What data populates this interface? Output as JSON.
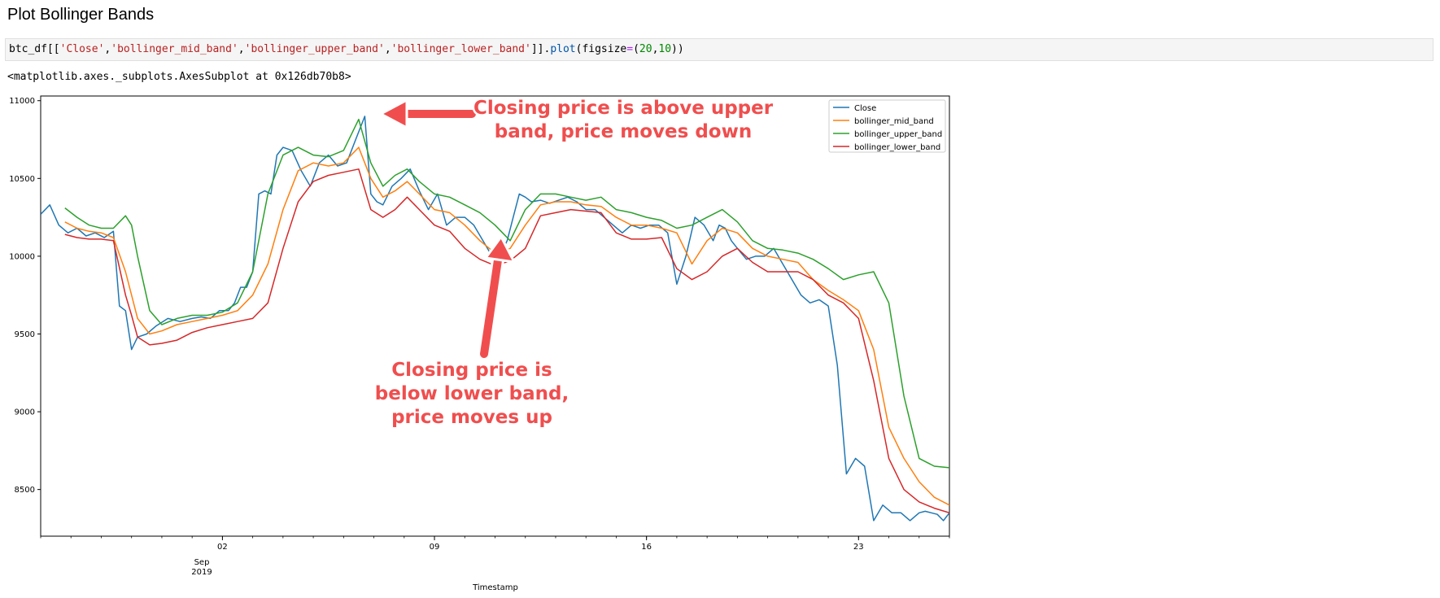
{
  "page": {
    "heading": "Plot Bollinger Bands",
    "code": {
      "prefix": "btc_df[[",
      "col_close": "'Close'",
      "comma": ",",
      "col_mid": "'bollinger_mid_band'",
      "col_upper": "'bollinger_upper_band'",
      "col_lower": "'bollinger_lower_band'",
      "mid": "]].",
      "method": "plot",
      "args_open": "(figsize",
      "equals": "=",
      "paren": "(",
      "num1": "20",
      "num2": "10",
      "close": "))"
    },
    "output_repr": "<matplotlib.axes._subplots.AxesSubplot at 0x126db70b8>"
  },
  "colors": {
    "close": "#1f77b4",
    "bollinger_mid_band": "#ff7f0e",
    "bollinger_upper_band": "#2ca02c",
    "bollinger_lower_band": "#d62728",
    "annotation": "#f04e4e"
  },
  "chart_data": {
    "type": "line",
    "xlabel": "Timestamp",
    "ylabel": "",
    "title": "",
    "xlim": [
      0,
      30
    ],
    "ylim": [
      8200,
      11030
    ],
    "x_unit": "days since 2019-08-26",
    "yticks": [
      8500,
      9000,
      9500,
      10000,
      10500,
      11000
    ],
    "xticks": [
      {
        "x": 6,
        "label": "02",
        "sublabel": "Sep",
        "sublabel2": "2019"
      },
      {
        "x": 13,
        "label": "09",
        "sublabel": "",
        "sublabel2": ""
      },
      {
        "x": 20,
        "label": "16",
        "sublabel": "",
        "sublabel2": ""
      },
      {
        "x": 27,
        "label": "23",
        "sublabel": "",
        "sublabel2": ""
      }
    ],
    "legend_position": "top-right",
    "series": [
      {
        "name": "Close",
        "color": "#1f77b4",
        "x": [
          0,
          0.3,
          0.6,
          0.9,
          1.2,
          1.5,
          1.8,
          2.1,
          2.4,
          2.6,
          2.8,
          3.0,
          3.2,
          3.5,
          3.8,
          4.2,
          4.6,
          5.0,
          5.3,
          5.6,
          5.9,
          6.2,
          6.4,
          6.6,
          6.8,
          7.0,
          7.2,
          7.4,
          7.6,
          7.8,
          8.0,
          8.3,
          8.6,
          8.9,
          9.2,
          9.5,
          9.8,
          10.1,
          10.4,
          10.7,
          10.9,
          11.1,
          11.3,
          11.6,
          11.9,
          12.2,
          12.5,
          12.8,
          13.1,
          13.4,
          13.7,
          14.0,
          14.3,
          14.6,
          14.9,
          15.2,
          15.4,
          15.6,
          15.8,
          16.0,
          16.2,
          16.5,
          16.8,
          17.1,
          17.4,
          17.7,
          18.0,
          18.3,
          18.6,
          18.9,
          19.2,
          19.5,
          19.8,
          20.1,
          20.4,
          20.7,
          21.0,
          21.3,
          21.6,
          21.9,
          22.2,
          22.4,
          22.6,
          22.8,
          23.0,
          23.3,
          23.6,
          23.9,
          24.2,
          24.5,
          24.8,
          25.1,
          25.4,
          25.7,
          26.0,
          26.3,
          26.6,
          26.9,
          27.2,
          27.5,
          27.8,
          28.1,
          28.4,
          28.7,
          29.0,
          29.2,
          29.4,
          29.6,
          29.8,
          30.0
        ],
        "y": [
          10270,
          10330,
          10200,
          10150,
          10180,
          10130,
          10150,
          10120,
          10160,
          9680,
          9650,
          9400,
          9480,
          9500,
          9550,
          9600,
          9580,
          9600,
          9610,
          9600,
          9650,
          9650,
          9700,
          9800,
          9800,
          9900,
          10400,
          10420,
          10400,
          10650,
          10700,
          10680,
          10550,
          10450,
          10600,
          10650,
          10580,
          10600,
          10750,
          10900,
          10400,
          10350,
          10330,
          10450,
          10500,
          10560,
          10420,
          10300,
          10400,
          10200,
          10250,
          10250,
          10200,
          10100,
          10000,
          10020,
          10100,
          10250,
          10400,
          10380,
          10350,
          10360,
          10340,
          10360,
          10380,
          10350,
          10300,
          10300,
          10250,
          10200,
          10150,
          10200,
          10180,
          10200,
          10200,
          10150,
          9820,
          10000,
          10250,
          10200,
          10100,
          10200,
          10180,
          10100,
          10050,
          9980,
          10000,
          10000,
          10050,
          9950,
          9850,
          9750,
          9700,
          9720,
          9680,
          9300,
          8600,
          8700,
          8650,
          8300,
          8400,
          8350,
          8350,
          8300,
          8350,
          8360,
          8350,
          8340,
          8300,
          8350
        ]
      },
      {
        "name": "bollinger_mid_band",
        "color": "#ff7f0e",
        "x": [
          0.8,
          1.2,
          1.6,
          2.0,
          2.4,
          2.8,
          3.2,
          3.6,
          4.0,
          4.5,
          5.0,
          5.5,
          6.0,
          6.5,
          7.0,
          7.5,
          8.0,
          8.5,
          9.0,
          9.5,
          10.0,
          10.5,
          10.9,
          11.3,
          11.7,
          12.1,
          12.5,
          13.0,
          13.5,
          14.0,
          14.5,
          15.0,
          15.5,
          16.0,
          16.5,
          17.0,
          17.5,
          18.0,
          18.5,
          19.0,
          19.5,
          20.0,
          20.5,
          21.0,
          21.5,
          22.0,
          22.5,
          23.0,
          23.5,
          24.0,
          24.5,
          25.0,
          25.5,
          26.0,
          26.5,
          27.0,
          27.5,
          28.0,
          28.5,
          29.0,
          29.5,
          30.0
        ],
        "y": [
          10220,
          10180,
          10160,
          10150,
          10120,
          9900,
          9600,
          9500,
          9520,
          9560,
          9580,
          9600,
          9620,
          9650,
          9750,
          9950,
          10300,
          10550,
          10600,
          10580,
          10600,
          10700,
          10500,
          10380,
          10420,
          10480,
          10400,
          10300,
          10280,
          10200,
          10100,
          10020,
          10050,
          10200,
          10330,
          10350,
          10350,
          10330,
          10320,
          10250,
          10200,
          10200,
          10180,
          10150,
          9950,
          10100,
          10180,
          10150,
          10050,
          10000,
          9980,
          9960,
          9850,
          9780,
          9720,
          9650,
          9400,
          8900,
          8700,
          8550,
          8450,
          8400
        ]
      },
      {
        "name": "bollinger_upper_band",
        "color": "#2ca02c",
        "x": [
          0.8,
          1.2,
          1.6,
          2.0,
          2.4,
          2.8,
          3.0,
          3.2,
          3.6,
          4.0,
          4.5,
          5.0,
          5.5,
          6.0,
          6.5,
          7.0,
          7.5,
          8.0,
          8.5,
          9.0,
          9.5,
          10.0,
          10.5,
          10.9,
          11.3,
          11.7,
          12.1,
          12.5,
          13.0,
          13.5,
          14.0,
          14.5,
          15.0,
          15.5,
          16.0,
          16.5,
          17.0,
          17.5,
          18.0,
          18.5,
          19.0,
          19.5,
          20.0,
          20.5,
          21.0,
          21.5,
          22.0,
          22.5,
          23.0,
          23.5,
          24.0,
          24.5,
          25.0,
          25.5,
          26.0,
          26.5,
          27.0,
          27.5,
          28.0,
          28.5,
          29.0,
          29.5,
          30.0
        ],
        "y": [
          10310,
          10250,
          10200,
          10180,
          10180,
          10260,
          10200,
          10000,
          9650,
          9560,
          9600,
          9620,
          9620,
          9640,
          9700,
          9900,
          10400,
          10650,
          10700,
          10650,
          10640,
          10680,
          10880,
          10600,
          10450,
          10520,
          10560,
          10480,
          10400,
          10380,
          10330,
          10280,
          10200,
          10100,
          10300,
          10400,
          10400,
          10380,
          10360,
          10380,
          10300,
          10280,
          10250,
          10230,
          10180,
          10200,
          10250,
          10300,
          10220,
          10100,
          10050,
          10040,
          10020,
          9980,
          9920,
          9850,
          9880,
          9900,
          9700,
          9100,
          8700,
          8650,
          8640
        ]
      },
      {
        "name": "bollinger_lower_band",
        "color": "#d62728",
        "x": [
          0.8,
          1.2,
          1.6,
          2.0,
          2.4,
          2.8,
          3.0,
          3.2,
          3.6,
          4.0,
          4.5,
          5.0,
          5.5,
          6.0,
          6.5,
          7.0,
          7.5,
          8.0,
          8.5,
          9.0,
          9.5,
          10.0,
          10.5,
          10.9,
          11.3,
          11.7,
          12.1,
          12.5,
          13.0,
          13.5,
          14.0,
          14.5,
          15.0,
          15.5,
          16.0,
          16.5,
          17.0,
          17.5,
          18.0,
          18.5,
          19.0,
          19.5,
          20.0,
          20.5,
          21.0,
          21.5,
          22.0,
          22.5,
          23.0,
          23.5,
          24.0,
          24.5,
          25.0,
          25.5,
          26.0,
          26.5,
          27.0,
          27.5,
          28.0,
          28.5,
          29.0,
          29.5,
          30.0
        ],
        "y": [
          10140,
          10120,
          10110,
          10110,
          10100,
          9750,
          9620,
          9480,
          9430,
          9440,
          9460,
          9510,
          9540,
          9560,
          9580,
          9600,
          9700,
          10050,
          10350,
          10480,
          10520,
          10540,
          10560,
          10300,
          10250,
          10300,
          10380,
          10300,
          10200,
          10160,
          10050,
          9980,
          9940,
          9970,
          10050,
          10260,
          10280,
          10300,
          10290,
          10280,
          10150,
          10110,
          10110,
          10120,
          9920,
          9850,
          9900,
          10000,
          10050,
          9960,
          9900,
          9900,
          9900,
          9850,
          9750,
          9700,
          9600,
          9200,
          8700,
          8500,
          8420,
          8380,
          8350
        ]
      }
    ],
    "annotations": [
      {
        "id": "upper",
        "lines": [
          "Closing price is above upper",
          "band, price moves down"
        ]
      },
      {
        "id": "lower",
        "lines": [
          "Closing price is",
          "below lower band,",
          "price moves up"
        ]
      }
    ]
  }
}
